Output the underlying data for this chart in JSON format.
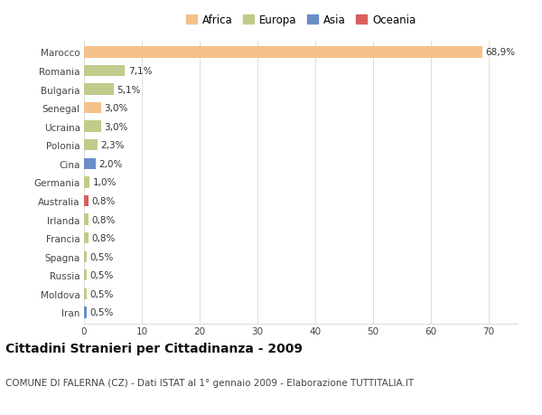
{
  "countries": [
    "Marocco",
    "Romania",
    "Bulgaria",
    "Senegal",
    "Ucraina",
    "Polonia",
    "Cina",
    "Germania",
    "Australia",
    "Irlanda",
    "Francia",
    "Spagna",
    "Russia",
    "Moldova",
    "Iran"
  ],
  "values": [
    68.9,
    7.1,
    5.1,
    3.0,
    3.0,
    2.3,
    2.0,
    1.0,
    0.8,
    0.8,
    0.8,
    0.5,
    0.5,
    0.5,
    0.5
  ],
  "labels": [
    "68,9%",
    "7,1%",
    "5,1%",
    "3,0%",
    "3,0%",
    "2,3%",
    "2,0%",
    "1,0%",
    "0,8%",
    "0,8%",
    "0,8%",
    "0,5%",
    "0,5%",
    "0,5%",
    "0,5%"
  ],
  "continents": [
    "Africa",
    "Europa",
    "Europa",
    "Africa",
    "Europa",
    "Europa",
    "Asia",
    "Europa",
    "Oceania",
    "Europa",
    "Europa",
    "Europa",
    "Europa",
    "Europa",
    "Asia"
  ],
  "continent_colors": {
    "Africa": "#F5C18A",
    "Europa": "#BFCC8A",
    "Asia": "#6B8EC9",
    "Oceania": "#D95F5F"
  },
  "legend_items": [
    "Africa",
    "Europa",
    "Asia",
    "Oceania"
  ],
  "legend_colors": [
    "#F5C18A",
    "#BFCC8A",
    "#6B8EC9",
    "#D95F5F"
  ],
  "title": "Cittadini Stranieri per Cittadinanza - 2009",
  "subtitle": "COMUNE DI FALERNA (CZ) - Dati ISTAT al 1° gennaio 2009 - Elaborazione TUTTITALIA.IT",
  "xlim": [
    0,
    75
  ],
  "xticks": [
    0,
    10,
    20,
    30,
    40,
    50,
    60,
    70
  ],
  "background_color": "#FFFFFF",
  "plot_bg_color": "#FFFFFF",
  "grid_color": "#DDDDDD",
  "bar_height": 0.6,
  "label_fontsize": 7.5,
  "tick_fontsize": 7.5,
  "title_fontsize": 10,
  "subtitle_fontsize": 7.5
}
